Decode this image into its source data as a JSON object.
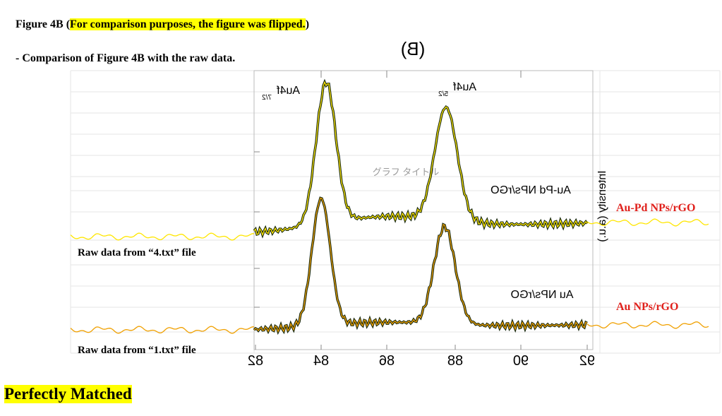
{
  "header": {
    "prefix": "Figure 4B (",
    "highlight": "For comparison purposes, the figure was flipped.",
    "suffix": ")"
  },
  "subtitle": "- Comparison of Figure 4B with the raw data.",
  "figure": {
    "panel": "(B)",
    "watermark": "グラフ タイトル",
    "peak_labels": [
      {
        "main": "Au4f",
        "sub": "7/2"
      },
      {
        "main": "Au4f",
        "sub": "5/2"
      }
    ],
    "curve_labels": [
      "Au-Pd NPs/rGO",
      "Au NPs/rGO"
    ],
    "y_label": "Intensity (a.u.)",
    "x_ticks": [
      "82",
      "84",
      "86",
      "88",
      "90",
      "92"
    ]
  },
  "annotations": {
    "series_labels": [
      "Au-Pd NPs/rGO",
      "Au NPs/rGO"
    ],
    "raw_labels": [
      "Raw data from “4.txt” file",
      "Raw data from “1.txt” file"
    ]
  },
  "footer": "Perfectly Matched"
}
